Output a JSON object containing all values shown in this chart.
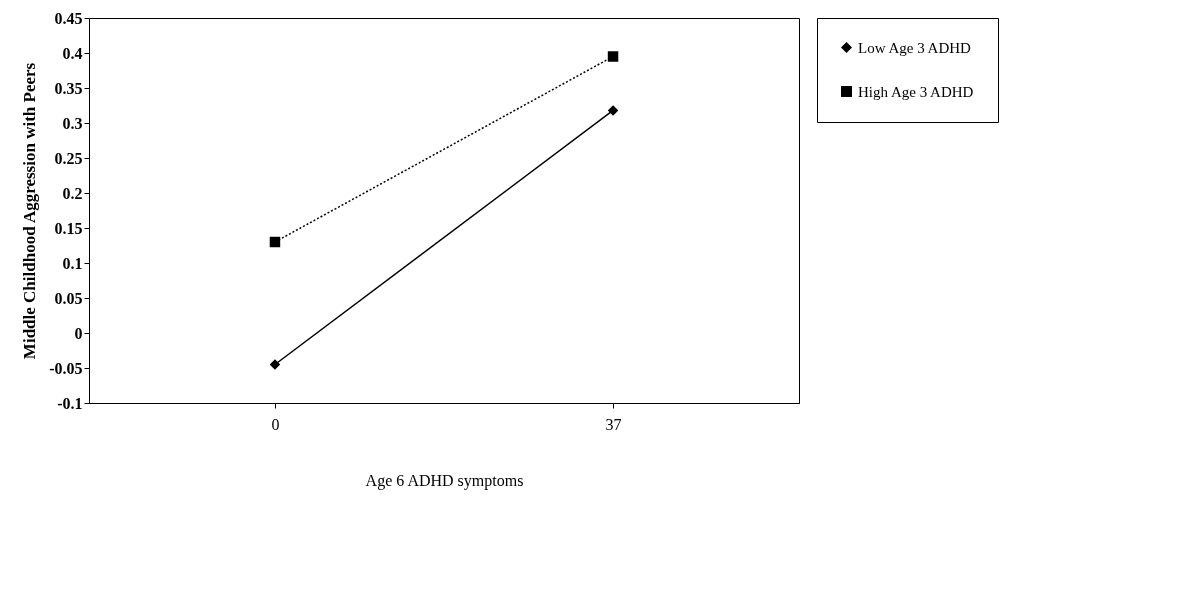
{
  "chart_data": {
    "type": "line",
    "xlabel": "Age 6 ADHD symptoms",
    "ylabel": "Middle Childhood Aggression with Peers",
    "categories": [
      "0",
      "37"
    ],
    "ylim": [
      -0.1,
      0.45
    ],
    "yticks": [
      -0.1,
      -0.05,
      0,
      0.05,
      0.1,
      0.15,
      0.2,
      0.25,
      0.3,
      0.35,
      0.4,
      0.45
    ],
    "grid": false,
    "legend": "right",
    "series": [
      {
        "name": "Low Age 3 ADHD",
        "color": "#000000",
        "values": [
          -0.045,
          0.318
        ],
        "marker": "diamond",
        "line_style": "solid"
      },
      {
        "name": "High Age 3 ADHD",
        "color": "#000000",
        "values": [
          0.13,
          0.395
        ],
        "marker": "square",
        "line_style": "dotted"
      }
    ]
  }
}
